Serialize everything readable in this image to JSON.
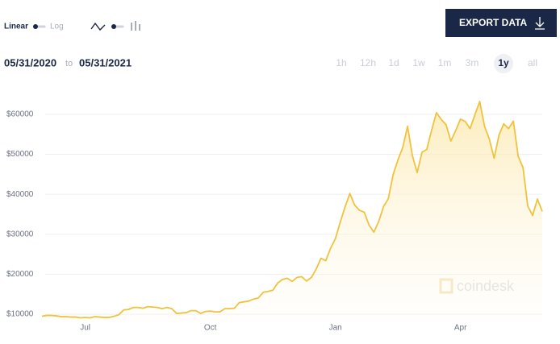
{
  "controls": {
    "scale_linear": "Linear",
    "scale_log": "Log",
    "export": "EXPORT DATA",
    "date_from": "05/31/2020",
    "date_sep": "to",
    "date_to": "05/31/2021",
    "ranges": [
      "1h",
      "12h",
      "1d",
      "1w",
      "1m",
      "3m",
      "1y",
      "all"
    ],
    "watermark": "coindesk"
  },
  "chart_data": {
    "type": "line",
    "categories": [
      null,
      null,
      null,
      null,
      null,
      null,
      null,
      null,
      null,
      "Jul",
      null,
      null,
      null,
      null,
      null,
      null,
      null,
      null,
      null,
      null,
      null,
      null,
      null,
      null,
      null,
      null,
      null,
      null,
      null,
      null,
      null,
      null,
      null,
      null,
      null,
      "Oct",
      null,
      null,
      null,
      null,
      null,
      null,
      null,
      null,
      null,
      null,
      null,
      null,
      null,
      null,
      null,
      null,
      null,
      null,
      null,
      null,
      null,
      null,
      null,
      null,
      null,
      "Jan",
      null,
      null,
      null,
      null,
      null,
      null,
      null,
      null,
      null,
      null,
      null,
      null,
      null,
      null,
      null,
      null,
      null,
      null,
      null,
      null,
      null,
      null,
      null,
      null,
      null,
      "Apr",
      null,
      null,
      null,
      null,
      null,
      null,
      null,
      null,
      null,
      null,
      null,
      null,
      null,
      null,
      null,
      null,
      null
    ],
    "values": [
      9500,
      9700,
      9700,
      9600,
      9400,
      9400,
      9300,
      9300,
      9100,
      9200,
      9100,
      9400,
      9300,
      9200,
      9200,
      9500,
      9900,
      11100,
      11200,
      11700,
      11700,
      11500,
      11900,
      11800,
      11700,
      11400,
      11700,
      11400,
      10200,
      10300,
      10400,
      10900,
      10900,
      10200,
      10700,
      10800,
      10600,
      10600,
      11400,
      11400,
      11500,
      12900,
      13100,
      13300,
      13800,
      14100,
      15500,
      15700,
      16000,
      17800,
      18700,
      19000,
      18200,
      19200,
      19400,
      18300,
      19200,
      21300,
      24000,
      23400,
      26500,
      28900,
      33000,
      36800,
      40200,
      37300,
      36000,
      35500,
      32300,
      30500,
      33200,
      36900,
      38900,
      44900,
      48600,
      51700,
      57000,
      49700,
      45400,
      50500,
      51200,
      56000,
      60400,
      58700,
      57400,
      53300,
      55900,
      58800,
      58200,
      56400,
      59900,
      63200,
      57000,
      53800,
      49000,
      54800,
      57600,
      56400,
      58300,
      49500,
      46700,
      37000,
      34700,
      38800,
      35700
    ],
    "color": "#f0c23e",
    "ylim": [
      8000,
      65000
    ],
    "yticks": [
      {
        "value": 10000,
        "label": "$10000"
      },
      {
        "value": 20000,
        "label": "$20000"
      },
      {
        "value": 30000,
        "label": "$30000"
      },
      {
        "value": 40000,
        "label": "$40000"
      },
      {
        "value": 50000,
        "label": "$50000"
      },
      {
        "value": 60000,
        "label": "$60000"
      }
    ],
    "grid": true
  }
}
